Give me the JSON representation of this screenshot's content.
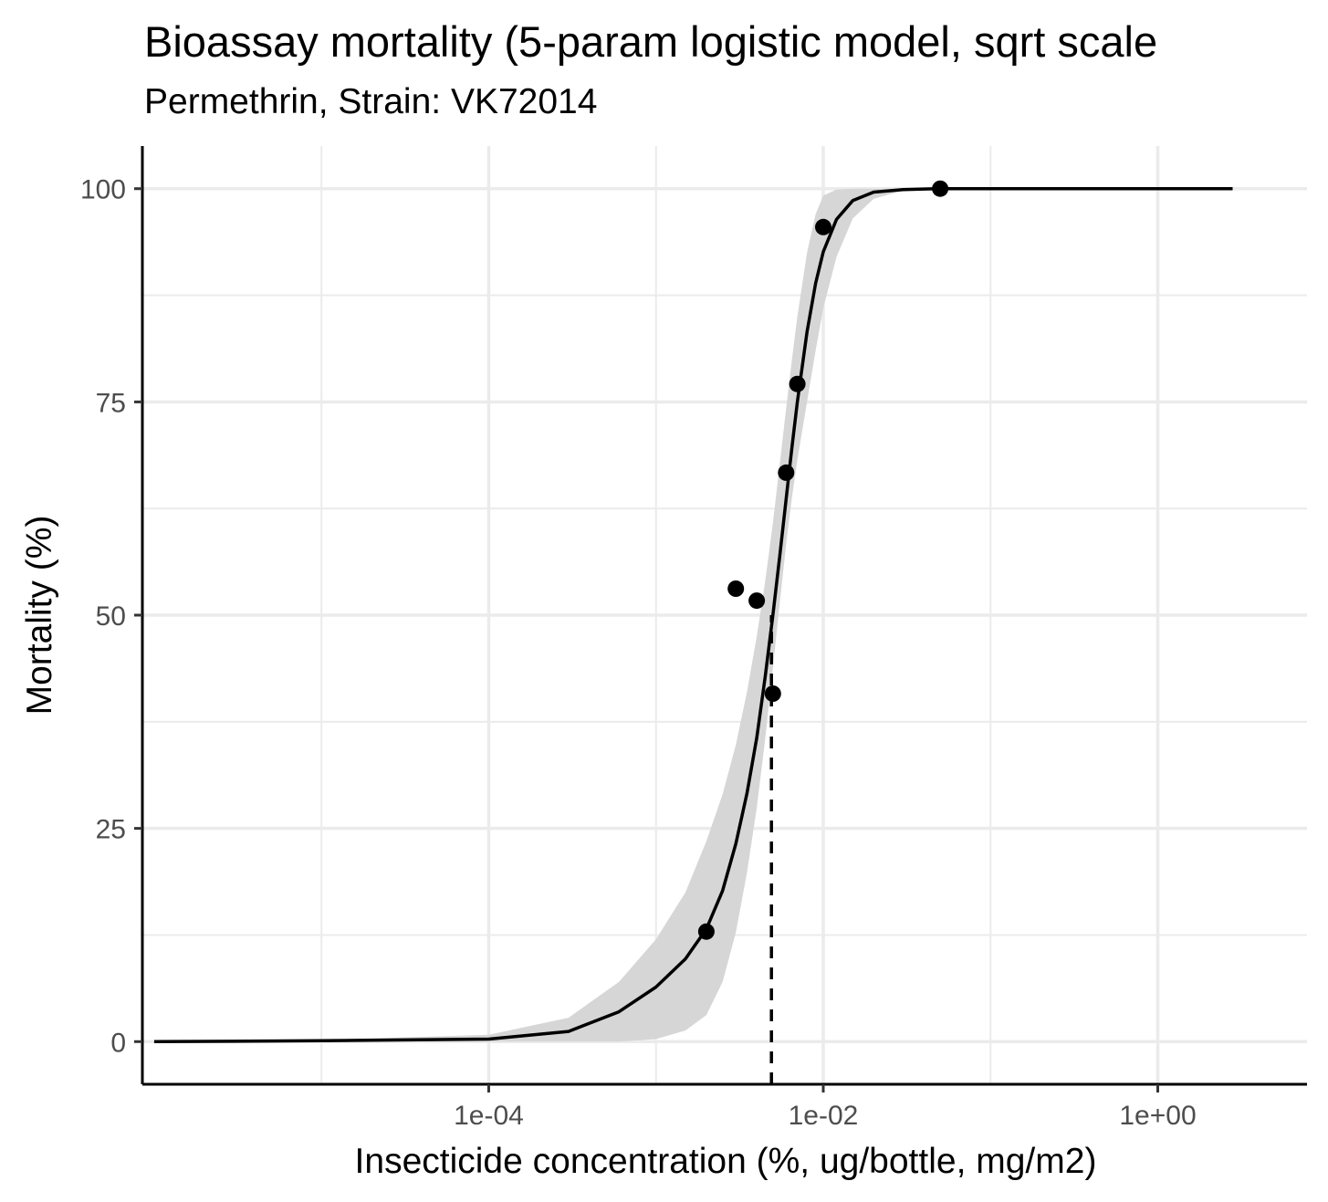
{
  "chart_data": {
    "type": "scatter",
    "title": "Bioassay mortality (5-param logistic model, sqrt scale",
    "subtitle": "Permethrin, Strain: VK72014",
    "xlabel": "Insecticide concentration (%, ug/bottle, mg/m2)",
    "ylabel": "Mortality (%)",
    "x_scale": "log10",
    "xlim": [
      8.5e-07,
      7.8
    ],
    "ylim": [
      -5,
      105
    ],
    "x_ticks": [
      0.0001,
      0.01,
      1
    ],
    "x_tick_labels": [
      "1e-04",
      "1e-02",
      "1e+00"
    ],
    "y_ticks": [
      0,
      25,
      50,
      75,
      100
    ],
    "y_tick_labels": [
      "0",
      "25",
      "50",
      "75",
      "100"
    ],
    "grid": true,
    "series": [
      {
        "kind": "points",
        "x": [
          0.002,
          0.003,
          0.004,
          0.005,
          0.006,
          0.007,
          0.01,
          0.05
        ],
        "y": [
          12.9,
          53.1,
          51.7,
          40.8,
          66.7,
          77.1,
          95.5,
          100
        ]
      },
      {
        "kind": "fitted-curve",
        "x": [
          1e-06,
          1e-05,
          0.0001,
          0.0003,
          0.0006,
          0.001,
          0.0015,
          0.002,
          0.0025,
          0.003,
          0.0035,
          0.004,
          0.0045,
          0.005,
          0.0055,
          0.006,
          0.0065,
          0.007,
          0.008,
          0.009,
          0.01,
          0.012,
          0.015,
          0.02,
          0.03,
          0.05,
          0.1,
          0.5,
          2.8
        ],
        "y": [
          0,
          0.1,
          0.3,
          1.2,
          3.5,
          6.4,
          9.7,
          13.2,
          17.7,
          23.2,
          29.1,
          35.6,
          42.8,
          50.0,
          57.0,
          63.6,
          69.7,
          75.0,
          83.2,
          88.9,
          92.6,
          96.4,
          98.6,
          99.6,
          99.9,
          100,
          100,
          100,
          100
        ]
      },
      {
        "kind": "confidence-band",
        "x": [
          1e-06,
          1e-05,
          0.0001,
          0.0003,
          0.0006,
          0.001,
          0.0015,
          0.002,
          0.0025,
          0.003,
          0.0035,
          0.004,
          0.0045,
          0.005,
          0.0055,
          0.006,
          0.0065,
          0.007,
          0.008,
          0.009,
          0.01,
          0.012,
          0.015,
          0.02,
          0.03,
          0.05,
          0.1
        ],
        "lower": [
          0,
          0,
          0,
          0,
          0,
          0.3,
          1.3,
          3.1,
          7.0,
          12.8,
          19.8,
          27.4,
          35.5,
          43.8,
          51.5,
          58.3,
          63.8,
          68.2,
          75.0,
          81.0,
          86.0,
          92.0,
          96.5,
          98.8,
          99.8,
          100,
          100
        ],
        "upper": [
          0,
          0.2,
          0.8,
          2.8,
          7.0,
          12.0,
          17.5,
          23.5,
          29.0,
          34.8,
          41.0,
          47.5,
          54.0,
          60.8,
          67.8,
          74.2,
          80.0,
          85.0,
          92.5,
          97.0,
          99.2,
          99.9,
          100,
          100,
          100,
          100,
          100
        ]
      },
      {
        "kind": "reference-line",
        "style": "dashed",
        "x": 0.0049,
        "y_from": -5,
        "y_to": 50
      }
    ]
  },
  "colors": {
    "points": "#000000",
    "curve": "#000000",
    "band": "#d6d6d6",
    "grid": "#ebebeb",
    "axis": "#000000",
    "tick_label": "#4d4d4d"
  }
}
